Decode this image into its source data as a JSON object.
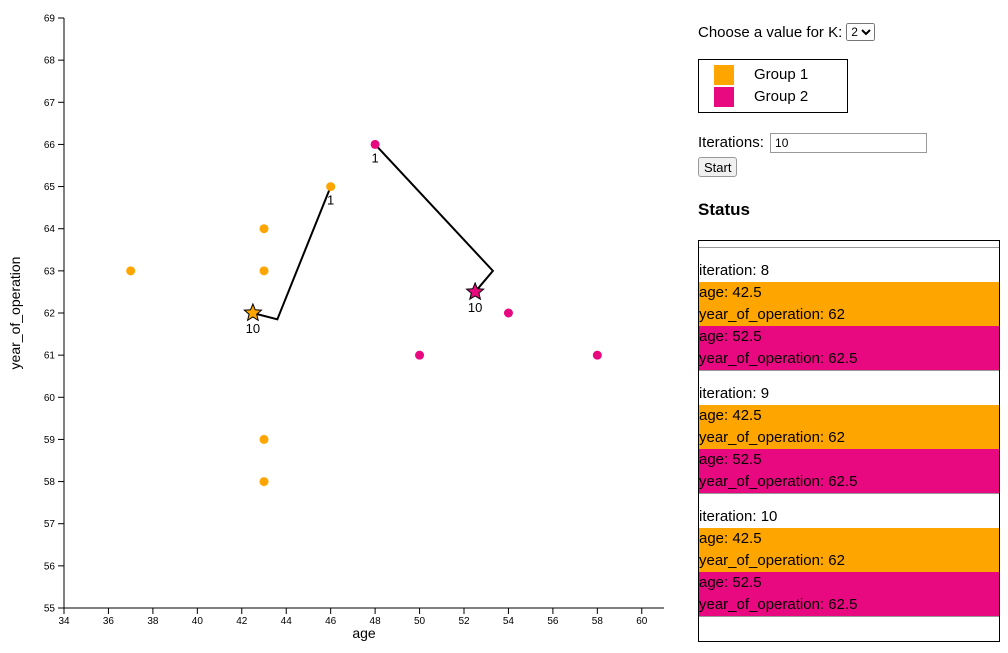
{
  "colors": {
    "group1": "#FFA500",
    "group2": "#E8087F"
  },
  "controls": {
    "k_label": "Choose a value for K:",
    "k_value": "2",
    "legend": [
      {
        "label": "Group 1",
        "color": "#FFA500"
      },
      {
        "label": "Group 2",
        "color": "#E8087F"
      }
    ],
    "iterations_label": "Iterations:",
    "iterations_value": "10",
    "start_label": "Start"
  },
  "status": {
    "title": "Status",
    "iterations": [
      {
        "iteration": "iteration: 8",
        "g1": [
          "age: 42.5",
          "year_of_operation: 62"
        ],
        "g2": [
          "age: 52.5",
          "year_of_operation: 62.5"
        ]
      },
      {
        "iteration": "iteration: 9",
        "g1": [
          "age: 42.5",
          "year_of_operation: 62"
        ],
        "g2": [
          "age: 52.5",
          "year_of_operation: 62.5"
        ]
      },
      {
        "iteration": "iteration: 10",
        "g1": [
          "age: 42.5",
          "year_of_operation: 62"
        ],
        "g2": [
          "age: 52.5",
          "year_of_operation: 62.5"
        ]
      }
    ]
  },
  "chart_data": {
    "type": "scatter",
    "xlabel": "age",
    "ylabel": "year_of_operation",
    "xlim": [
      34,
      61
    ],
    "ylim": [
      55,
      69
    ],
    "xticks": [
      34,
      36,
      38,
      40,
      42,
      44,
      46,
      48,
      50,
      52,
      54,
      56,
      58,
      60
    ],
    "yticks": [
      55,
      56,
      57,
      58,
      59,
      60,
      61,
      62,
      63,
      64,
      65,
      66,
      67,
      68,
      69
    ],
    "grid": false,
    "points": [
      {
        "x": 37,
        "y": 63,
        "group": 1
      },
      {
        "x": 43,
        "y": 64,
        "group": 1
      },
      {
        "x": 43,
        "y": 63,
        "group": 1
      },
      {
        "x": 43,
        "y": 59,
        "group": 1
      },
      {
        "x": 43,
        "y": 58,
        "group": 1
      },
      {
        "x": 46,
        "y": 65,
        "group": 1
      },
      {
        "x": 48,
        "y": 66,
        "group": 2
      },
      {
        "x": 50,
        "y": 61,
        "group": 2
      },
      {
        "x": 54,
        "y": 62,
        "group": 2
      },
      {
        "x": 58,
        "y": 61,
        "group": 2
      }
    ],
    "centroid_paths": [
      {
        "group": 1,
        "path": [
          [
            46,
            65
          ],
          [
            43.6,
            61.85
          ],
          [
            42.5,
            62
          ]
        ],
        "start_label": "1",
        "end_label": "10"
      },
      {
        "group": 2,
        "path": [
          [
            48,
            66
          ],
          [
            53.3,
            63
          ],
          [
            52.5,
            62.5
          ]
        ],
        "start_label": "1",
        "end_label": "10"
      }
    ]
  }
}
